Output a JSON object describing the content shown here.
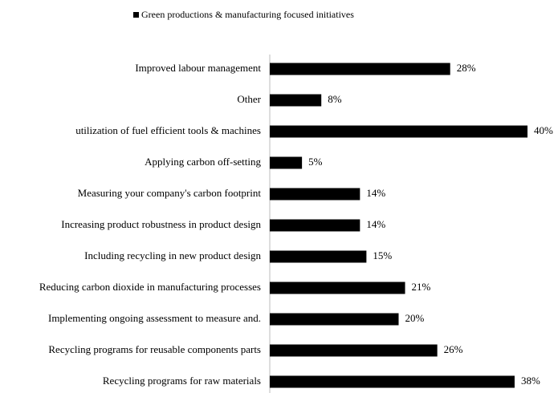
{
  "chart_data": {
    "type": "bar",
    "categories": [
      "Improved labour management",
      "Other",
      "utilization of fuel efficient tools & machines",
      "Applying carbon off-setting",
      "Measuring your company's carbon footprint",
      "Increasing product robustness in product design",
      "Including recycling in new product design",
      "Reducing carbon dioxide in manufacturing processes",
      "Implementing ongoing assessment to measure and.",
      "Recycling programs for reusable components parts",
      "Recycling programs for raw materials"
    ],
    "series": [
      {
        "name": "Green productions & manufacturing focused initiatives",
        "color": "#000000",
        "values": [
          28,
          8,
          40,
          5,
          14,
          14,
          15,
          21,
          20,
          26,
          38
        ],
        "value_labels": [
          "28%",
          "8%",
          "40%",
          "5%",
          "14%",
          "14%",
          "15%",
          "21%",
          "20%",
          "26%",
          "38%"
        ]
      }
    ],
    "legend": "top"
  }
}
